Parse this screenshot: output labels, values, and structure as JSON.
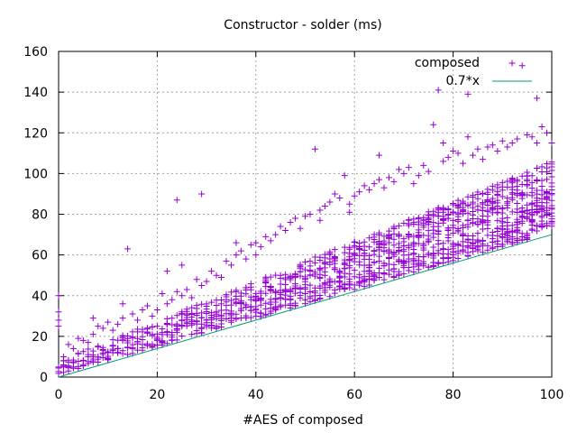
{
  "chart_data": {
    "type": "scatter",
    "title": "Constructor - solder (ms)",
    "xlabel": "#AES of composed",
    "ylabel": "",
    "xlim": [
      0,
      100
    ],
    "ylim": [
      0,
      160
    ],
    "xticks": [
      "0",
      "20",
      "40",
      "60",
      "80",
      "100"
    ],
    "yticks": [
      "0",
      "20",
      "40",
      "60",
      "80",
      "100",
      "120",
      "140",
      "160"
    ],
    "grid": true,
    "legend_position": "top-right",
    "series": [
      {
        "name": "composed",
        "marker": "plus",
        "color": "#9400d3",
        "x": [
          0,
          0,
          0,
          0,
          1,
          1,
          1,
          2,
          2,
          3,
          4,
          5,
          6,
          7,
          7,
          8,
          9,
          10,
          11,
          12,
          13,
          13,
          14,
          15,
          16,
          17,
          18,
          19,
          20,
          21,
          22,
          22,
          23,
          24,
          24,
          25,
          25,
          26,
          27,
          28,
          29,
          29,
          30,
          31,
          32,
          33,
          34,
          35,
          36,
          36,
          37,
          38,
          39,
          40,
          40,
          41,
          42,
          43,
          44,
          45,
          46,
          47,
          48,
          49,
          50,
          51,
          52,
          53,
          53,
          54,
          55,
          56,
          57,
          58,
          59,
          59,
          60,
          61,
          62,
          63,
          64,
          65,
          65,
          66,
          67,
          68,
          69,
          70,
          71,
          72,
          73,
          74,
          75,
          76,
          77,
          78,
          78,
          79,
          80,
          81,
          82,
          83,
          83,
          84,
          85,
          86,
          87,
          88,
          89,
          90,
          91,
          92,
          93,
          94,
          95,
          96,
          97,
          97,
          98,
          99,
          100
        ],
        "y": [
          40,
          32,
          25,
          28,
          8,
          6,
          10,
          16,
          5,
          14,
          19,
          18,
          17,
          29,
          21,
          25,
          24,
          27,
          23,
          26,
          36,
          29,
          63,
          31,
          28,
          33,
          35,
          30,
          33,
          41,
          52,
          36,
          38,
          87,
          42,
          55,
          40,
          43,
          39,
          48,
          90,
          45,
          47,
          52,
          50,
          49,
          57,
          55,
          60,
          66,
          62,
          58,
          65,
          66,
          60,
          64,
          69,
          67,
          70,
          74,
          72,
          76,
          78,
          73,
          79,
          80,
          112,
          82,
          77,
          84,
          86,
          90,
          88,
          99,
          85,
          81,
          89,
          91,
          94,
          92,
          95,
          109,
          97,
          93,
          98,
          96,
          102,
          100,
          103,
          95,
          99,
          104,
          101,
          124,
          141,
          115,
          106,
          108,
          111,
          110,
          105,
          139,
          118,
          109,
          112,
          107,
          113,
          114,
          111,
          116,
          113,
          115,
          117,
          153,
          119,
          118,
          137,
          115,
          123,
          120,
          115
        ],
        "y_upper": [
          40,
          32,
          25,
          28,
          8,
          6,
          10,
          16,
          5,
          14,
          19,
          18,
          17,
          29,
          21,
          25,
          24,
          27,
          23,
          26,
          36,
          29,
          63,
          31,
          28,
          33,
          35,
          30,
          33,
          41,
          52,
          36,
          38,
          87,
          42,
          55,
          40,
          43,
          39,
          48,
          90,
          45,
          47,
          52,
          50,
          49,
          57,
          55,
          60,
          66,
          62,
          58,
          65,
          66,
          60,
          64,
          69,
          67,
          70,
          74,
          72,
          76,
          78,
          73,
          79,
          80,
          112,
          82,
          77,
          84,
          86,
          90,
          88,
          99,
          85,
          81,
          89,
          91,
          94,
          92,
          95,
          109,
          97,
          93,
          98,
          96,
          102,
          100,
          103,
          95,
          99,
          104,
          101,
          124,
          141,
          115,
          106,
          108,
          111,
          110,
          105,
          139,
          118,
          109,
          112,
          107,
          113,
          114,
          111,
          116,
          113,
          115,
          117,
          153,
          119,
          118,
          137,
          115,
          123,
          120,
          115
        ]
      },
      {
        "name": "0.7*x",
        "type": "line",
        "color": "#009e73",
        "x": [
          0,
          100
        ],
        "y": [
          0,
          70
        ]
      }
    ]
  }
}
